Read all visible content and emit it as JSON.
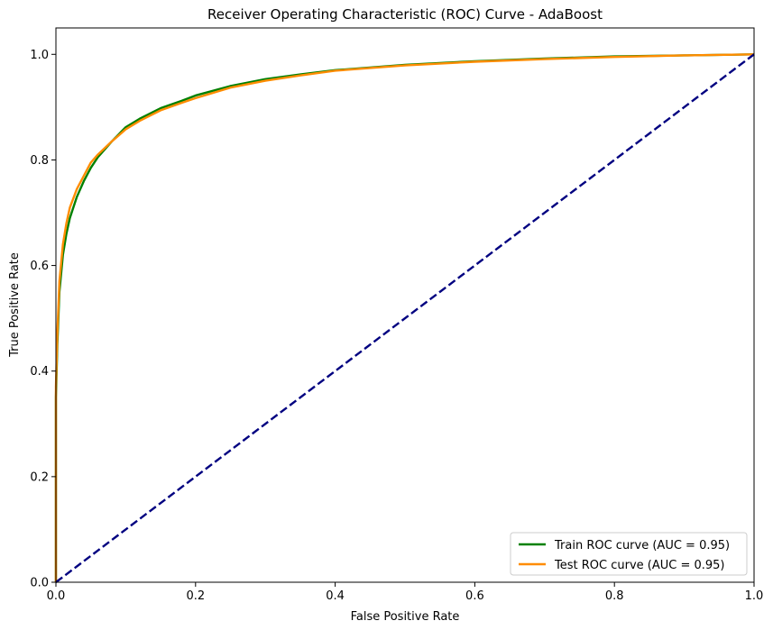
{
  "chart_data": {
    "type": "line",
    "title": "Receiver Operating Characteristic (ROC) Curve - AdaBoost",
    "xlabel": "False Positive Rate",
    "ylabel": "True Positive Rate",
    "xlim": [
      0.0,
      1.0
    ],
    "ylim": [
      0.0,
      1.05
    ],
    "grid": false,
    "legend_position": "lower-right",
    "x_ticks": [
      "0.0",
      "0.2",
      "0.4",
      "0.6",
      "0.8",
      "1.0"
    ],
    "y_ticks": [
      "0.0",
      "0.2",
      "0.4",
      "0.6",
      "0.8",
      "1.0"
    ],
    "series": [
      {
        "name": "Train ROC curve (AUC = 0.95)",
        "color": "#008000",
        "style": "solid",
        "x": [
          0.0,
          0.0,
          0.002,
          0.005,
          0.01,
          0.015,
          0.02,
          0.03,
          0.04,
          0.05,
          0.06,
          0.08,
          0.1,
          0.12,
          0.15,
          0.18,
          0.2,
          0.25,
          0.3,
          0.35,
          0.4,
          0.5,
          0.6,
          0.7,
          0.8,
          0.9,
          1.0
        ],
        "y": [
          0.0,
          0.35,
          0.45,
          0.55,
          0.62,
          0.66,
          0.69,
          0.73,
          0.76,
          0.785,
          0.805,
          0.835,
          0.862,
          0.878,
          0.898,
          0.912,
          0.922,
          0.94,
          0.953,
          0.962,
          0.97,
          0.98,
          0.987,
          0.992,
          0.996,
          0.998,
          1.0
        ]
      },
      {
        "name": "Test ROC curve (AUC = 0.95)",
        "color": "#ff8c00",
        "style": "solid",
        "x": [
          0.0,
          0.0,
          0.002,
          0.005,
          0.01,
          0.015,
          0.02,
          0.03,
          0.04,
          0.05,
          0.06,
          0.08,
          0.1,
          0.12,
          0.15,
          0.18,
          0.2,
          0.25,
          0.3,
          0.35,
          0.4,
          0.5,
          0.6,
          0.7,
          0.8,
          0.9,
          1.0
        ],
        "y": [
          0.0,
          0.37,
          0.47,
          0.57,
          0.64,
          0.68,
          0.71,
          0.745,
          0.77,
          0.795,
          0.81,
          0.835,
          0.858,
          0.874,
          0.894,
          0.908,
          0.917,
          0.937,
          0.95,
          0.96,
          0.969,
          0.979,
          0.986,
          0.991,
          0.995,
          0.998,
          1.0
        ]
      },
      {
        "name": "",
        "color": "#000080",
        "style": "dashed",
        "x": [
          0.0,
          1.0
        ],
        "y": [
          0.0,
          1.0
        ]
      }
    ]
  }
}
